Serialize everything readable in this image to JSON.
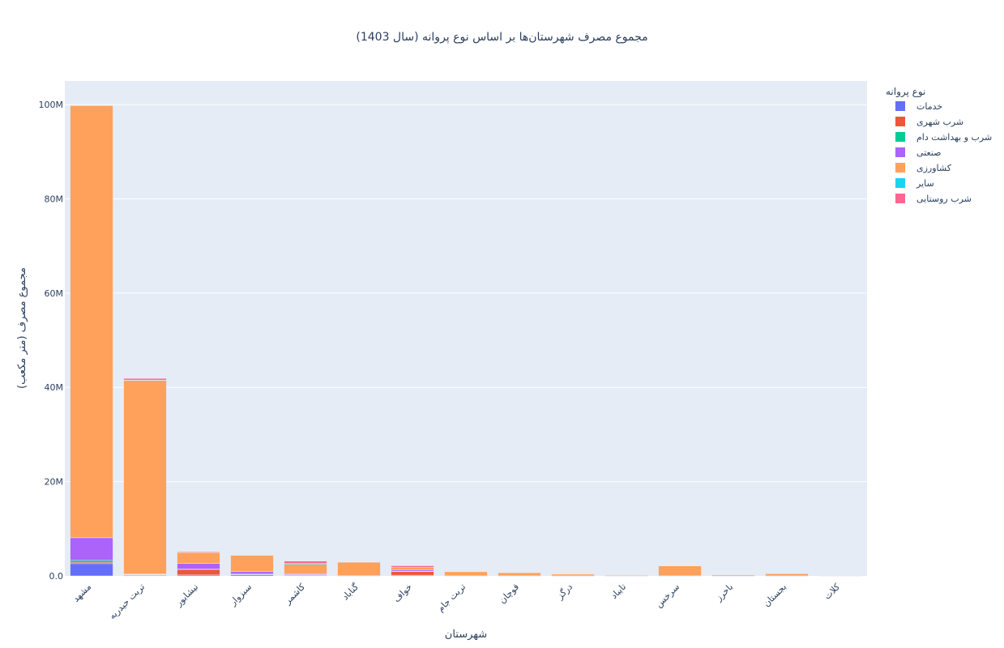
{
  "chart_data": {
    "type": "bar",
    "barmode": "stack",
    "title": "مجموع مصرف شهرستان‌ها بر اساس نوع پروانه (سال 1403)",
    "xlabel": "شهرستان",
    "ylabel": "مجموع مصرف (متر مکعب)",
    "ylim": [
      0,
      105000000
    ],
    "yticks": [
      0,
      20000000,
      40000000,
      60000000,
      80000000,
      100000000
    ],
    "ytick_labels": [
      "0.0",
      "20M",
      "40M",
      "60M",
      "80M",
      "100M"
    ],
    "grid": true,
    "legend_title": "نوع پروانه",
    "legend_position": "top-right",
    "categories": [
      "مشهد",
      "تربت حیدریه",
      "نیشابور",
      "سبزوار",
      "کاشمر",
      "گناباد",
      "خواف",
      "تربت جام",
      "قوچان",
      "درگز",
      "تایباد",
      "سرخس",
      "باخرز",
      "بجستان",
      "کلات"
    ],
    "series": [
      {
        "name": "خدمات",
        "color": "#636efa",
        "values": [
          2600000,
          150000,
          200000,
          250000,
          150000,
          50000,
          150000,
          30000,
          20000,
          10000,
          10000,
          20000,
          5000,
          10000,
          0
        ]
      },
      {
        "name": "شرب شهری",
        "color": "#ef553b",
        "values": [
          300000,
          100000,
          1200000,
          100000,
          50000,
          0,
          800000,
          0,
          0,
          0,
          0,
          0,
          0,
          0,
          0
        ]
      },
      {
        "name": "شرب و بهداشت دام",
        "color": "#00cc96",
        "values": [
          400000,
          50000,
          50000,
          50000,
          50000,
          0,
          50000,
          0,
          0,
          0,
          0,
          0,
          0,
          0,
          0
        ]
      },
      {
        "name": "صنعتی",
        "color": "#ab63fa",
        "values": [
          4800000,
          100000,
          1200000,
          500000,
          200000,
          0,
          300000,
          0,
          0,
          0,
          0,
          0,
          0,
          0,
          0
        ]
      },
      {
        "name": "کشاورزی",
        "color": "#ffa15a",
        "values": [
          91700000,
          41100000,
          2300000,
          3500000,
          2000000,
          2850000,
          500000,
          850000,
          650000,
          350000,
          150000,
          2100000,
          200000,
          450000,
          50000
        ]
      },
      {
        "name": "سایر",
        "color": "#19d3f3",
        "values": [
          50000,
          50000,
          0,
          50000,
          200000,
          0,
          0,
          0,
          0,
          0,
          0,
          0,
          0,
          0,
          0
        ]
      },
      {
        "name": "شرب روستایی",
        "color": "#ff6692",
        "values": [
          50000,
          350000,
          150000,
          50000,
          500000,
          0,
          350000,
          0,
          0,
          0,
          0,
          0,
          0,
          0,
          0
        ]
      }
    ]
  }
}
